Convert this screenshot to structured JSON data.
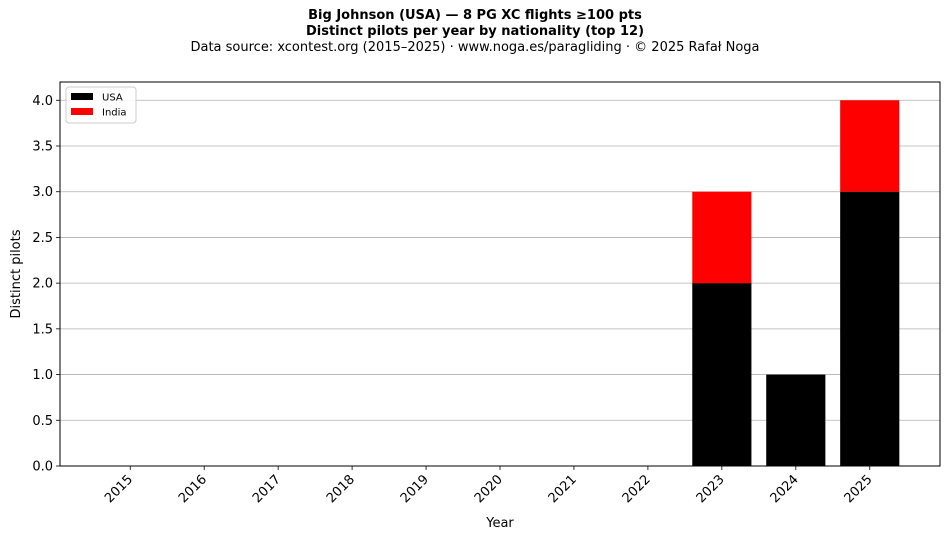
{
  "titles": {
    "line1": "Big Johnson (USA)  —  8 PG XC flights ≥100 pts",
    "line2": "Distinct pilots per year by nationality (top 12)",
    "line3": "Data source: xcontest.org (2015–2025)  ·  www.noga.es/paragliding  ·  © 2025 Rafał Noga"
  },
  "chart_data": {
    "type": "bar",
    "stacked": true,
    "categories": [
      "2015",
      "2016",
      "2017",
      "2018",
      "2019",
      "2020",
      "2021",
      "2022",
      "2023",
      "2024",
      "2025"
    ],
    "series": [
      {
        "name": "USA",
        "color": "#000000",
        "values": [
          0,
          0,
          0,
          0,
          0,
          0,
          0,
          0,
          2,
          1,
          3
        ]
      },
      {
        "name": "India",
        "color": "#ff0000",
        "values": [
          0,
          0,
          0,
          0,
          0,
          0,
          0,
          0,
          1,
          0,
          1
        ]
      }
    ],
    "xlabel": "Year",
    "ylabel": "Distinct pilots",
    "ylim": [
      0,
      4.2
    ],
    "yticks": [
      "0.0",
      "0.5",
      "1.0",
      "1.5",
      "2.0",
      "2.5",
      "3.0",
      "3.5",
      "4.0"
    ],
    "grid": "horizontal",
    "legend_position": "top-left"
  }
}
